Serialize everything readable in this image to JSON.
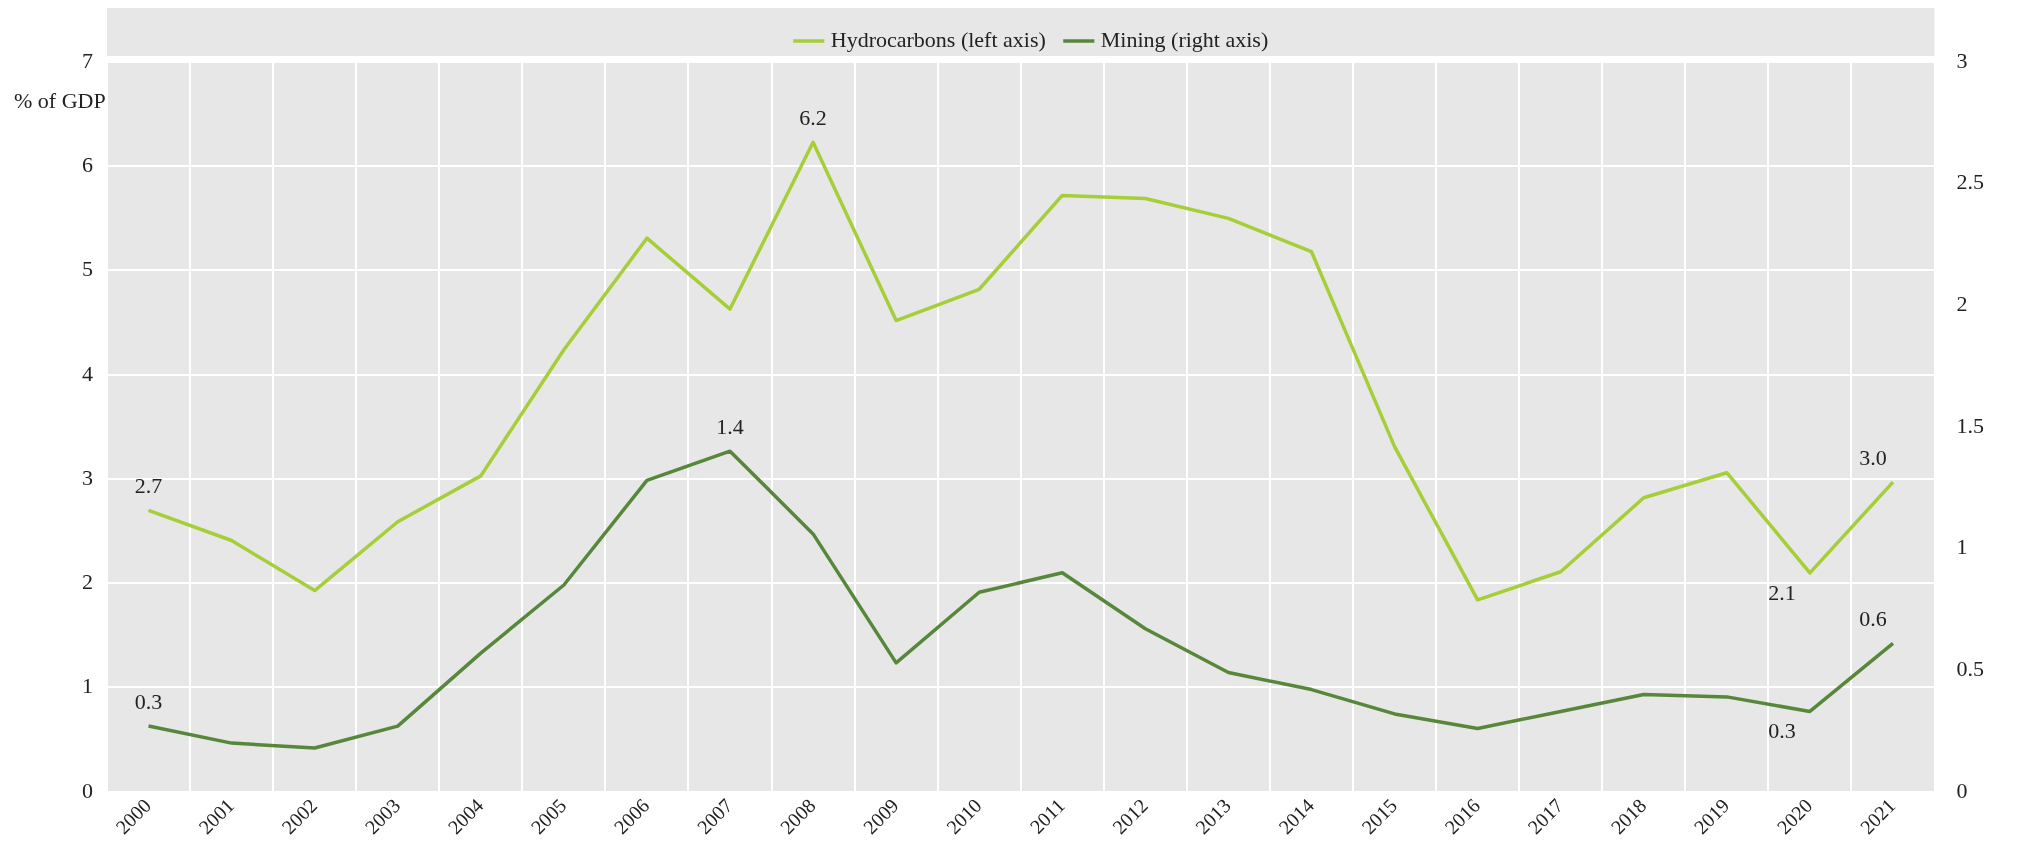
{
  "chart_data": {
    "type": "line",
    "ylabel": "% of GDP",
    "categories": [
      "2000",
      "2001",
      "2002",
      "2003",
      "2004",
      "2005",
      "2006",
      "2007",
      "2008",
      "2009",
      "2010",
      "2011",
      "2012",
      "2013",
      "2014",
      "2015",
      "2016",
      "2017",
      "2018",
      "2019",
      "2020",
      "2021"
    ],
    "series": [
      {
        "name": "Hydrocarbons (left axis)",
        "color": "#a6ce39",
        "values": [
          2.7,
          2.41,
          1.93,
          2.59,
          3.03,
          4.24,
          5.31,
          4.63,
          6.23,
          4.52,
          4.82,
          5.72,
          5.69,
          5.5,
          5.18,
          3.31,
          1.84,
          2.11,
          2.82,
          3.06,
          2.1,
          2.97
        ],
        "value_labels": [
          "2.7",
          null,
          null,
          null,
          null,
          null,
          null,
          null,
          "6.2",
          null,
          null,
          null,
          null,
          null,
          null,
          null,
          null,
          null,
          null,
          null,
          "2.1",
          "3.0"
        ]
      },
      {
        "name": "Mining (right axis)",
        "color": "#57873a",
        "axis": "y2",
        "values": [
          0.27,
          0.2,
          0.18,
          0.27,
          0.57,
          0.85,
          1.28,
          1.4,
          1.06,
          0.53,
          0.82,
          0.9,
          0.67,
          0.49,
          0.42,
          0.32,
          0.26,
          0.33,
          0.4,
          0.39,
          0.33,
          0.61
        ],
        "value_labels": [
          "0.3",
          null,
          null,
          null,
          null,
          null,
          null,
          "1.4",
          null,
          null,
          null,
          null,
          null,
          null,
          null,
          null,
          null,
          null,
          null,
          null,
          "0.3",
          "0.6"
        ]
      }
    ],
    "ylim": [
      0,
      7
    ],
    "yticks": [
      0,
      1,
      2,
      3,
      4,
      5,
      6,
      7
    ],
    "y2lim": [
      0,
      3
    ],
    "y2ticks": [
      0,
      0.5,
      1,
      1.5,
      2,
      2.5,
      3
    ],
    "grid": true,
    "legend": "top",
    "marker": "none",
    "line_style": "solid"
  }
}
